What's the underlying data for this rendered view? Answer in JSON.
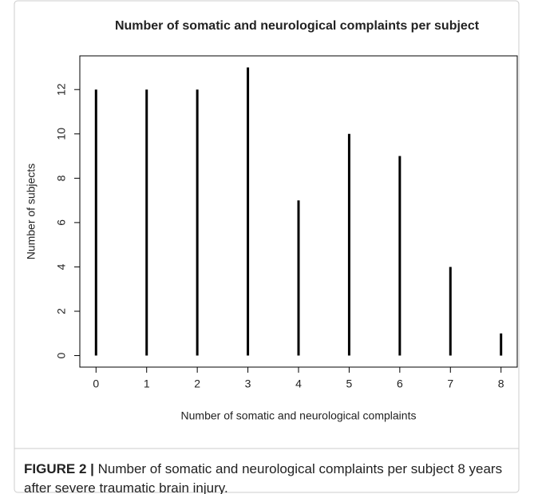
{
  "chart_data": {
    "type": "stem",
    "title": "Number of somatic and neurological complaints per subject",
    "x_label": "Number of somatic and neurological complaints",
    "y_label": "Number of subjects",
    "x": [
      0,
      1,
      2,
      3,
      4,
      5,
      6,
      7,
      8
    ],
    "values": [
      12,
      12,
      12,
      13,
      7,
      10,
      9,
      4,
      1
    ],
    "color": "#000000",
    "xlim": [
      -0.32,
      8.32
    ],
    "ylim": [
      -0.52,
      13.52
    ],
    "xticks": [
      0,
      1,
      2,
      3,
      4,
      5,
      6,
      7,
      8
    ],
    "yticks": [
      0,
      2,
      4,
      6,
      8,
      10,
      12
    ]
  },
  "caption": {
    "label": "FIGURE 2 |",
    "text": "Number of somatic and neurological complaints per subject 8 years after severe traumatic brain injury."
  }
}
